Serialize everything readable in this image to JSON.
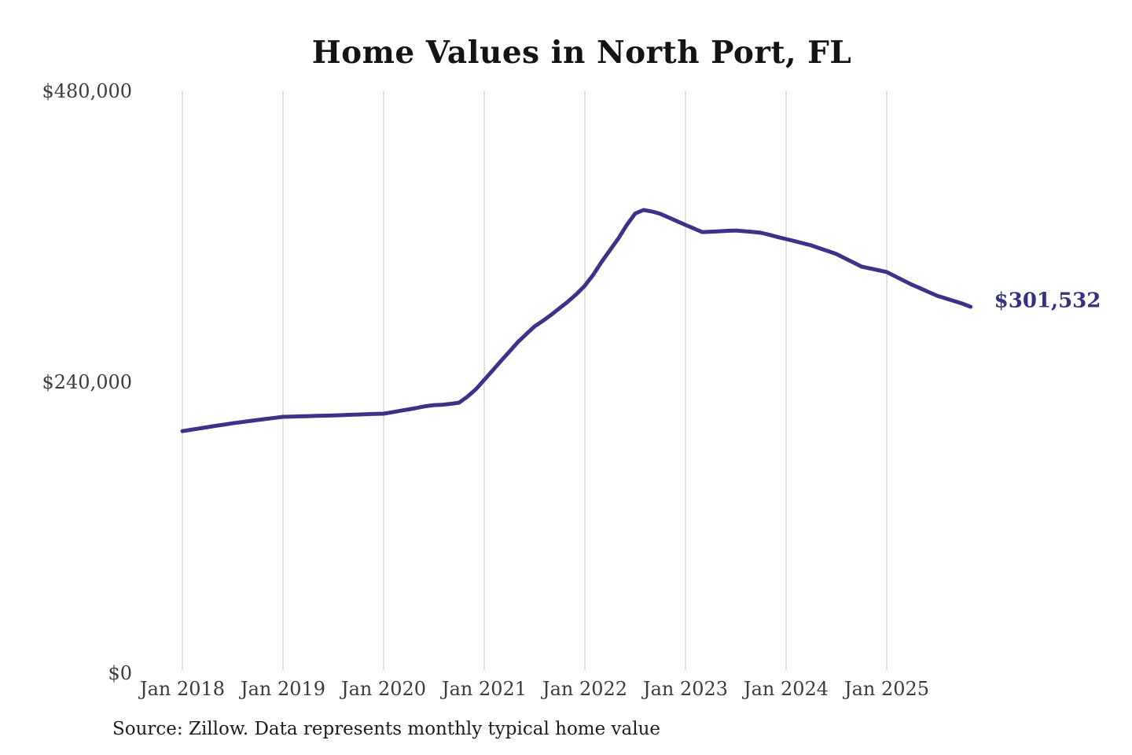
{
  "title": "Home Values in North Port, FL",
  "source_note": "Source: Zillow. Data represents monthly typical home value",
  "end_label": "$301,532",
  "colors": {
    "background": "#ffffff",
    "line": "#3b3387",
    "grid": "#cbcbcb",
    "tick_text": "#3c3c3c",
    "title_text": "#141414",
    "end_label_text": "#35337e",
    "source_text": "#1c1c1c"
  },
  "y_axis": {
    "ticks": [
      {
        "label": "$480,000",
        "value": 480000
      },
      {
        "label": "$240,000",
        "value": 240000
      },
      {
        "label": "$0",
        "value": 0
      }
    ],
    "max": 480000
  },
  "x_axis": {
    "tick_labels": [
      "Jan 2018",
      "Jan 2019",
      "Jan 2020",
      "Jan 2021",
      "Jan 2022",
      "Jan 2023",
      "Jan 2024",
      "Jan 2025"
    ]
  },
  "chart_data": {
    "type": "line",
    "title": "Home Values in North Port, FL",
    "xlabel": "",
    "ylabel": "",
    "ylim": [
      0,
      480000
    ],
    "grid": "vertical-only",
    "legend": false,
    "series_name": "Typical home value",
    "final_value_label": "$301,532",
    "x": [
      "2018-01",
      "2018-02",
      "2018-03",
      "2018-04",
      "2018-05",
      "2018-06",
      "2018-07",
      "2018-08",
      "2018-09",
      "2018-10",
      "2018-11",
      "2018-12",
      "2019-01",
      "2019-02",
      "2019-03",
      "2019-04",
      "2019-05",
      "2019-06",
      "2019-07",
      "2019-08",
      "2019-09",
      "2019-10",
      "2019-11",
      "2019-12",
      "2020-01",
      "2020-02",
      "2020-03",
      "2020-04",
      "2020-05",
      "2020-06",
      "2020-07",
      "2020-08",
      "2020-09",
      "2020-10",
      "2020-11",
      "2020-12",
      "2021-01",
      "2021-02",
      "2021-03",
      "2021-04",
      "2021-05",
      "2021-06",
      "2021-07",
      "2021-08",
      "2021-09",
      "2021-10",
      "2021-11",
      "2021-12",
      "2022-01",
      "2022-02",
      "2022-03",
      "2022-04",
      "2022-05",
      "2022-06",
      "2022-07",
      "2022-08",
      "2022-09",
      "2022-10",
      "2022-11",
      "2022-12",
      "2023-01",
      "2023-02",
      "2023-03",
      "2023-04",
      "2023-05",
      "2023-06",
      "2023-07",
      "2023-08",
      "2023-09",
      "2023-10",
      "2023-11",
      "2023-12",
      "2024-01",
      "2024-02",
      "2024-03",
      "2024-04",
      "2024-05",
      "2024-06",
      "2024-07",
      "2024-08",
      "2024-09",
      "2024-10",
      "2024-11",
      "2024-12",
      "2025-01",
      "2025-02",
      "2025-03",
      "2025-04",
      "2025-05",
      "2025-06",
      "2025-07",
      "2025-08",
      "2025-09",
      "2025-10",
      "2025-11"
    ],
    "values": [
      199000,
      200100,
      201200,
      202300,
      203400,
      204400,
      205500,
      206400,
      207300,
      208200,
      209100,
      210000,
      210800,
      211000,
      211200,
      211400,
      211600,
      211800,
      212000,
      212200,
      212500,
      212700,
      213000,
      213200,
      213400,
      214600,
      215800,
      217000,
      218200,
      219600,
      220500,
      220800,
      221500,
      222500,
      227500,
      233500,
      241300,
      249100,
      256900,
      264600,
      272400,
      278900,
      285400,
      290000,
      295000,
      300500,
      306000,
      312000,
      319000,
      328000,
      338600,
      348300,
      358000,
      369000,
      378500,
      381400,
      380200,
      378200,
      375200,
      372100,
      369100,
      366100,
      363200,
      363500,
      363800,
      364200,
      364500,
      363900,
      363300,
      362600,
      360900,
      359100,
      357400,
      355700,
      354000,
      352200,
      349800,
      347500,
      345100,
      341600,
      338200,
      334700,
      333200,
      331700,
      330200,
      326700,
      323200,
      319800,
      316800,
      313700,
      310700,
      308500,
      306400,
      304200,
      301532
    ]
  }
}
